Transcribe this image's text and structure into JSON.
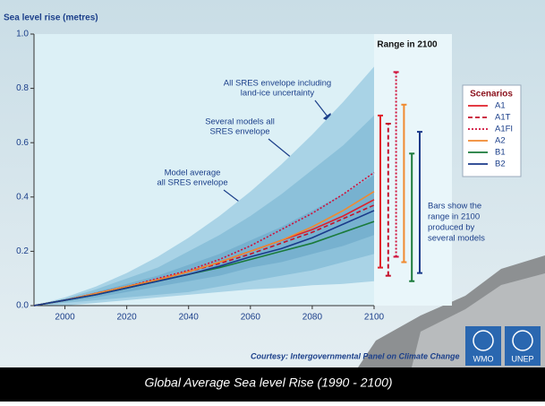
{
  "chart_data": {
    "type": "line",
    "title": "Sea level rise (metres)",
    "x": [
      1990,
      2000,
      2010,
      2020,
      2030,
      2040,
      2050,
      2060,
      2070,
      2080,
      2090,
      2100
    ],
    "xlim": [
      1990,
      2100
    ],
    "xticks": [
      2000,
      2020,
      2040,
      2060,
      2080,
      2100
    ],
    "ylim": [
      0,
      1
    ],
    "yticks": [
      {
        "value": 0,
        "label": "0.0"
      },
      0.2,
      0.4,
      0.6,
      0.8,
      {
        "value": 1,
        "label": "1.0"
      }
    ],
    "envelopes": [
      {
        "color": "#a9d3e6",
        "lower": [
          0,
          0,
          0.01,
          0.02,
          0.03,
          0.04,
          0.05,
          0.06,
          0.065,
          0.075,
          0.08,
          0.09
        ],
        "upper": [
          0,
          0.03,
          0.07,
          0.12,
          0.18,
          0.25,
          0.33,
          0.42,
          0.52,
          0.63,
          0.75,
          0.88
        ]
      },
      {
        "color": "#8cc1da",
        "lower": [
          0,
          0.01,
          0.02,
          0.03,
          0.04,
          0.05,
          0.07,
          0.09,
          0.11,
          0.13,
          0.16,
          0.19
        ],
        "upper": [
          0,
          0.025,
          0.06,
          0.1,
          0.14,
          0.2,
          0.26,
          0.33,
          0.41,
          0.5,
          0.59,
          0.7
        ]
      },
      {
        "color": "#77b1cf",
        "lower": [
          0,
          0.015,
          0.03,
          0.05,
          0.07,
          0.09,
          0.11,
          0.14,
          0.16,
          0.19,
          0.22,
          0.26
        ],
        "upper": [
          0,
          0.02,
          0.05,
          0.08,
          0.11,
          0.15,
          0.19,
          0.24,
          0.29,
          0.35,
          0.41,
          0.48
        ]
      }
    ],
    "annotations": [
      {
        "lines": [
          "All SRES envelope including",
          "land-ice uncertainty"
        ]
      },
      {
        "lines": [
          "Several models all",
          "SRES envelope"
        ]
      },
      {
        "lines": [
          "Model average",
          "all SRES envelope"
        ]
      }
    ],
    "range_title": "Range in 2100",
    "range_note": [
      "Bars show  the",
      "range in 2100",
      "produced by",
      "several models"
    ],
    "legend_title": "Scenarios",
    "series": [
      {
        "name": "A1",
        "color": "#e0202a",
        "dash": "solid",
        "values": [
          0,
          0.02,
          0.045,
          0.07,
          0.095,
          0.125,
          0.16,
          0.2,
          0.24,
          0.28,
          0.33,
          0.39
        ],
        "range": [
          0.14,
          0.7
        ]
      },
      {
        "name": "A1T",
        "color": "#c4102a",
        "dash": "dashed",
        "values": [
          0,
          0.02,
          0.045,
          0.07,
          0.095,
          0.125,
          0.155,
          0.19,
          0.23,
          0.27,
          0.32,
          0.37
        ],
        "range": [
          0.11,
          0.67
        ]
      },
      {
        "name": "A1FI",
        "color": "#d0103a",
        "dash": "dotted",
        "values": [
          0,
          0.02,
          0.045,
          0.07,
          0.1,
          0.13,
          0.17,
          0.22,
          0.28,
          0.34,
          0.41,
          0.49
        ],
        "range": [
          0.18,
          0.86
        ]
      },
      {
        "name": "A2",
        "color": "#f08a30",
        "dash": "solid",
        "values": [
          0,
          0.02,
          0.045,
          0.07,
          0.095,
          0.125,
          0.16,
          0.2,
          0.24,
          0.29,
          0.35,
          0.42
        ],
        "range": [
          0.16,
          0.74
        ]
      },
      {
        "name": "B1",
        "color": "#1a7a3a",
        "dash": "solid",
        "values": [
          0,
          0.02,
          0.04,
          0.065,
          0.09,
          0.115,
          0.14,
          0.17,
          0.2,
          0.23,
          0.27,
          0.31
        ],
        "range": [
          0.09,
          0.56
        ]
      },
      {
        "name": "B2",
        "color": "#1a3a8a",
        "dash": "solid",
        "values": [
          0,
          0.02,
          0.04,
          0.065,
          0.09,
          0.115,
          0.145,
          0.18,
          0.21,
          0.25,
          0.3,
          0.35
        ],
        "range": [
          0.12,
          0.64
        ]
      }
    ],
    "credit": "Courtesy: Intergovernmental Panel on Climate Change",
    "caption": "Global Average Sea level Rise (1990 - 2100)",
    "logos": [
      "WMO",
      "UNEP"
    ]
  }
}
